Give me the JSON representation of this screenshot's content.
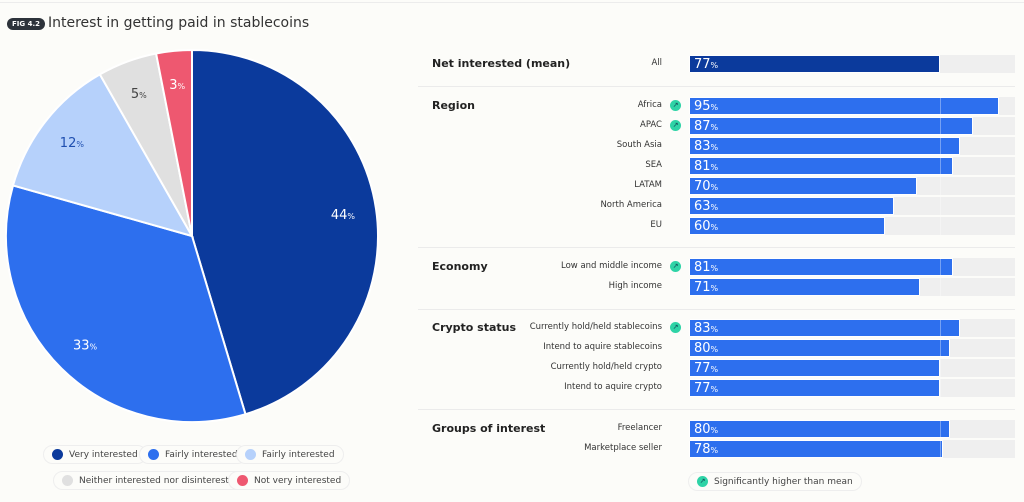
{
  "header": {
    "fig": "FIG 4.2",
    "title": "Interest in getting paid in stablecoins"
  },
  "chart_data": [
    {
      "type": "pie",
      "title": "Interest in getting paid in stablecoins",
      "slices": [
        {
          "name": "Very interested",
          "value": 44,
          "label": "44",
          "color": "#0b3a9c"
        },
        {
          "name": "Fairly interested",
          "value": 33,
          "label": "33",
          "color": "#2d6fee"
        },
        {
          "name": "Fairly interested",
          "value": 12,
          "label": "12",
          "color": "#b6d1fb"
        },
        {
          "name": "Neither interested nor disinterested",
          "value": 5,
          "label": "5",
          "color": "#e0e0e0"
        },
        {
          "name": "Not very interested",
          "value": 3,
          "label": "3",
          "color": "#ee5870"
        }
      ],
      "legend": "bottom"
    },
    {
      "type": "bar",
      "orientation": "horizontal",
      "unit": "%",
      "xlim": [
        0,
        100
      ],
      "mean": 77,
      "groups": [
        {
          "name": "Net interested (mean)",
          "rows": [
            {
              "label": "All",
              "value": 77,
              "sig": false
            }
          ]
        },
        {
          "name": "Region",
          "rows": [
            {
              "label": "Africa",
              "value": 95,
              "sig": true
            },
            {
              "label": "APAC",
              "value": 87,
              "sig": true
            },
            {
              "label": "South Asia",
              "value": 83,
              "sig": false
            },
            {
              "label": "SEA",
              "value": 81,
              "sig": false
            },
            {
              "label": "LATAM",
              "value": 70,
              "sig": false
            },
            {
              "label": "North America",
              "value": 63,
              "sig": false
            },
            {
              "label": "EU",
              "value": 60,
              "sig": false
            }
          ]
        },
        {
          "name": "Economy",
          "rows": [
            {
              "label": "Low and middle income",
              "value": 81,
              "sig": true
            },
            {
              "label": "High income",
              "value": 71,
              "sig": false
            }
          ]
        },
        {
          "name": "Crypto status",
          "rows": [
            {
              "label": "Currently hold/held stablecoins",
              "value": 83,
              "sig": true
            },
            {
              "label": "Intend to aquire stablecoins",
              "value": 80,
              "sig": false
            },
            {
              "label": "Currently hold/held crypto",
              "value": 77,
              "sig": false
            },
            {
              "label": "Intend to aquire crypto",
              "value": 77,
              "sig": false
            }
          ]
        },
        {
          "name": "Groups of interest",
          "rows": [
            {
              "label": "Freelancer",
              "value": 80,
              "sig": false
            },
            {
              "label": "Marketplace seller",
              "value": 78,
              "sig": false
            }
          ]
        }
      ],
      "colors": {
        "mean_bar": "#0b3a9c",
        "bar": "#2d6fee",
        "track": "#efefef",
        "sig": "#2ed3a6"
      },
      "note": "Significantly higher than mean",
      "sig_icon": "arrow-up-right-icon"
    }
  ]
}
